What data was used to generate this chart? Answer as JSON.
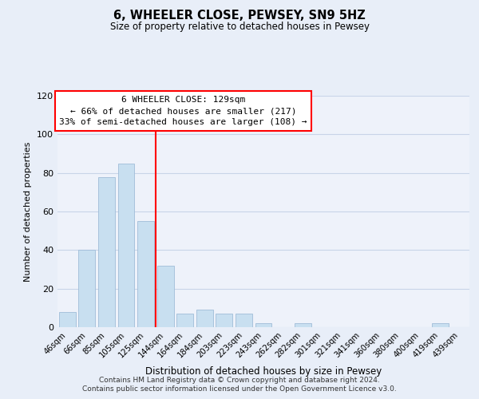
{
  "title": "6, WHEELER CLOSE, PEWSEY, SN9 5HZ",
  "subtitle": "Size of property relative to detached houses in Pewsey",
  "xlabel": "Distribution of detached houses by size in Pewsey",
  "ylabel": "Number of detached properties",
  "bar_labels": [
    "46sqm",
    "66sqm",
    "85sqm",
    "105sqm",
    "125sqm",
    "144sqm",
    "164sqm",
    "184sqm",
    "203sqm",
    "223sqm",
    "243sqm",
    "262sqm",
    "282sqm",
    "301sqm",
    "321sqm",
    "341sqm",
    "360sqm",
    "380sqm",
    "400sqm",
    "419sqm",
    "439sqm"
  ],
  "bar_values": [
    8,
    40,
    78,
    85,
    55,
    32,
    7,
    9,
    7,
    7,
    2,
    0,
    2,
    0,
    0,
    0,
    0,
    0,
    0,
    2,
    0
  ],
  "bar_color": "#c8dff0",
  "bar_edge_color": "#a0bcd8",
  "vline_index": 4,
  "vline_color": "red",
  "ylim": [
    0,
    120
  ],
  "yticks": [
    0,
    20,
    40,
    60,
    80,
    100,
    120
  ],
  "annotation_title": "6 WHEELER CLOSE: 129sqm",
  "annotation_line1": "← 66% of detached houses are smaller (217)",
  "annotation_line2": "33% of semi-detached houses are larger (108) →",
  "footnote1": "Contains HM Land Registry data © Crown copyright and database right 2024.",
  "footnote2": "Contains public sector information licensed under the Open Government Licence v3.0.",
  "background_color": "#e8eef8",
  "plot_bg_color": "#eef2fa",
  "grid_color": "#c8d4e8"
}
